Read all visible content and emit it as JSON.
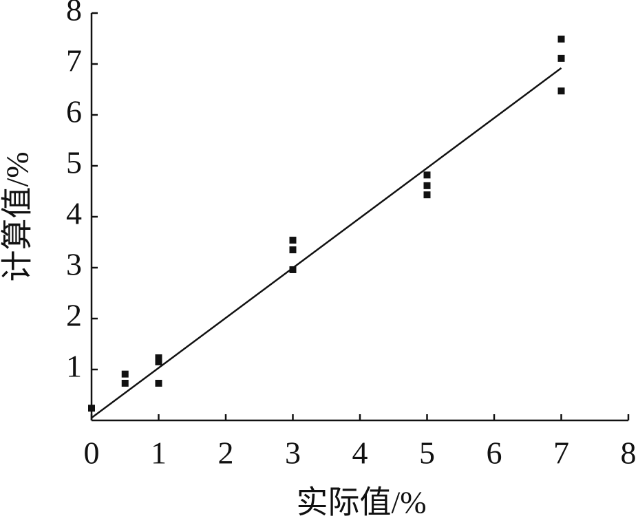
{
  "chart_data": {
    "type": "scatter",
    "x_label": "实际值/%",
    "y_label": "计算值/%",
    "xlim": [
      0,
      8
    ],
    "xticks": [
      0,
      1,
      2,
      3,
      4,
      5,
      6,
      7,
      8
    ],
    "ylim": [
      0,
      8
    ],
    "yticks": [
      1,
      2,
      3,
      4,
      5,
      6,
      7,
      8
    ],
    "series": [
      {
        "type": "scatter",
        "color": "#111111",
        "x": [
          0,
          0.5,
          0.5,
          1,
          1,
          1,
          3,
          3,
          3,
          5,
          5,
          5,
          7,
          7,
          7
        ],
        "values": [
          0.24,
          0.91,
          0.73,
          1.23,
          1.15,
          0.73,
          3.54,
          3.35,
          2.96,
          4.82,
          4.61,
          4.43,
          7.49,
          7.11,
          6.47
        ]
      },
      {
        "type": "line",
        "color": "#111111",
        "x": [
          0,
          7
        ],
        "values": [
          0.05,
          6.92
        ]
      }
    ]
  }
}
